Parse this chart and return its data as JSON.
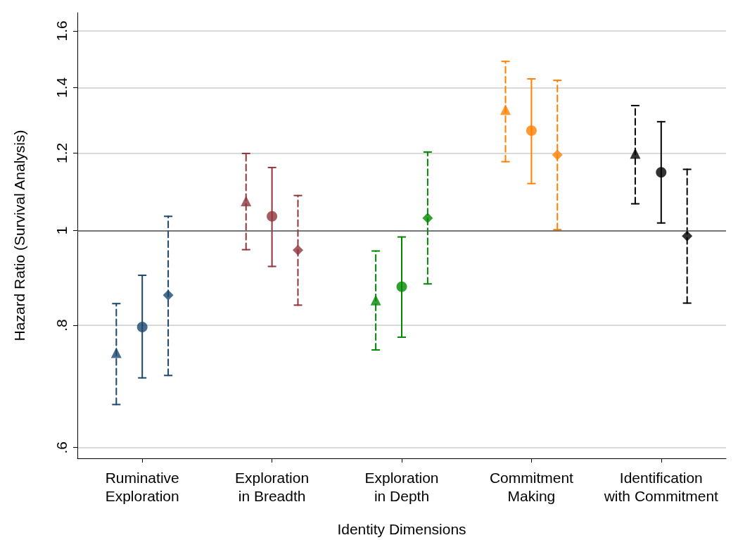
{
  "chart_data": {
    "type": "scatter",
    "xlabel": "Identity Dimensions",
    "ylabel": "Hazard Ratio (Survival Analysis)",
    "categories": [
      "Ruminative\nExploration",
      "Exploration\nin Breadth",
      "Exploration\nin Depth",
      "Commitment\nMaking",
      "Identification\nwith Commitment"
    ],
    "log": "y",
    "ylim": [
      0.585,
      1.67
    ],
    "yticks": [
      {
        "value": 0.6,
        "label": ".6"
      },
      {
        "value": 0.8,
        "label": ".8"
      },
      1,
      1.2,
      1.4,
      1.6
    ],
    "grid": "y",
    "ref_lines": [
      {
        "axis": "y",
        "value": 1,
        "color": "#555555"
      }
    ],
    "series": [
      {
        "marker": "triangle",
        "line_style": "dashed",
        "colors": [
          "#1a476f",
          "#90353b",
          "#008800",
          "#ff8000",
          "#000000"
        ],
        "values": [
          0.75,
          1.072,
          0.849,
          1.329,
          1.199
        ],
        "errors": [
          [
            0.664,
            0.842
          ],
          [
            0.956,
            1.199
          ],
          [
            0.755,
            0.953
          ],
          [
            1.176,
            1.489
          ],
          [
            1.065,
            1.342
          ]
        ]
      },
      {
        "marker": "circle",
        "line_style": "solid",
        "colors": [
          "#1a476f",
          "#90353b",
          "#008800",
          "#ff8000",
          "#000000"
        ],
        "values": [
          0.797,
          1.034,
          0.876,
          1.265,
          1.147
        ],
        "errors": [
          [
            0.707,
            0.9
          ],
          [
            0.919,
            1.16
          ],
          [
            0.778,
            0.985
          ],
          [
            1.117,
            1.429
          ],
          [
            1.018,
            1.292
          ]
        ]
      },
      {
        "marker": "diamond",
        "line_style": "dashed",
        "colors": [
          "#1a476f",
          "#90353b",
          "#008800",
          "#ff8000",
          "#000000"
        ],
        "values": [
          0.859,
          0.955,
          1.03,
          1.195,
          0.987
        ],
        "errors": [
          [
            0.711,
            1.034
          ],
          [
            0.839,
            1.086
          ],
          [
            0.882,
            1.203
          ],
          [
            1.002,
            1.424
          ],
          [
            0.843,
            1.155
          ]
        ]
      }
    ]
  }
}
